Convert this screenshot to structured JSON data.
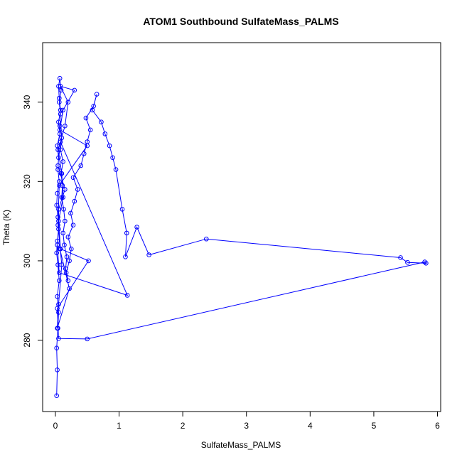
{
  "chart_data": {
    "type": "line",
    "title": "ATOM1 Southbound SulfateMass_PALMS",
    "xlabel": "SulfateMass_PALMS",
    "ylabel": "Theta (K)",
    "xlim": [
      -0.2,
      6.05
    ],
    "ylim": [
      262,
      355
    ],
    "xticks": [
      0,
      1,
      2,
      3,
      4,
      5,
      6
    ],
    "yticks": [
      280,
      300,
      320,
      340
    ],
    "grid": false,
    "legend": "none",
    "series": [
      {
        "color": "#0000ff",
        "marker": "open-circle",
        "x": [
          0.02,
          0.03,
          0.02,
          0.04,
          0.05,
          0.03,
          0.06,
          0.04,
          0.02,
          0.03,
          0.05,
          0.04,
          0.02,
          0.03,
          0.06,
          0.04,
          0.05,
          0.03,
          0.07,
          0.05,
          0.08,
          0.06,
          0.05,
          0.07,
          0.09,
          0.06,
          0.08,
          0.07,
          0.1,
          0.08,
          0.12,
          0.09,
          0.11,
          0.1,
          0.13,
          0.15,
          0.12,
          0.14,
          0.18,
          0.16,
          0.2,
          0.17,
          0.22,
          0.25,
          0.2,
          0.28,
          0.24,
          0.3,
          0.35,
          0.28,
          0.4,
          0.45,
          0.5,
          0.55,
          0.48,
          0.6,
          0.65,
          0.58,
          0.72,
          0.78,
          0.85,
          0.9,
          0.95,
          1.05,
          1.12,
          1.1,
          1.28,
          1.47,
          2.37,
          5.42,
          5.53,
          5.82,
          5.8,
          0.5,
          0.05,
          0.03,
          0.52,
          0.08,
          0.05,
          0.12,
          0.1,
          0.04,
          0.15,
          0.2,
          0.08,
          0.3,
          0.12,
          0.07,
          0.5,
          0.06,
          0.04,
          0.1,
          0.05,
          0.03,
          0.22,
          0.07,
          0.05,
          0.15,
          0.04,
          0.08,
          1.13,
          0.06,
          0.03
        ],
        "y": [
          266,
          272.5,
          278,
          283,
          287,
          291,
          295,
          299,
          302,
          305,
          308,
          311,
          314,
          317,
          320,
          323,
          326,
          329,
          332,
          335,
          338,
          341,
          344,
          346,
          343,
          340,
          337,
          334,
          331,
          328,
          325,
          322,
          319,
          316,
          313,
          310,
          307,
          304,
          301,
          298,
          295,
          297,
          300,
          303,
          306,
          309,
          312,
          315,
          318,
          321,
          324,
          327,
          330,
          333,
          336,
          339,
          342,
          338,
          335,
          332,
          329,
          326,
          323,
          313,
          307,
          301,
          308.5,
          301.5,
          305.5,
          300.8,
          299.6,
          299.4,
          299.7,
          280.3,
          280.4,
          288,
          300,
          303,
          310,
          316,
          322,
          328,
          334,
          340,
          344,
          343,
          338,
          333,
          329,
          319,
          309,
          299,
          289,
          283,
          293,
          303,
          313,
          318,
          324,
          330,
          291.3,
          297,
          304
        ]
      }
    ]
  }
}
